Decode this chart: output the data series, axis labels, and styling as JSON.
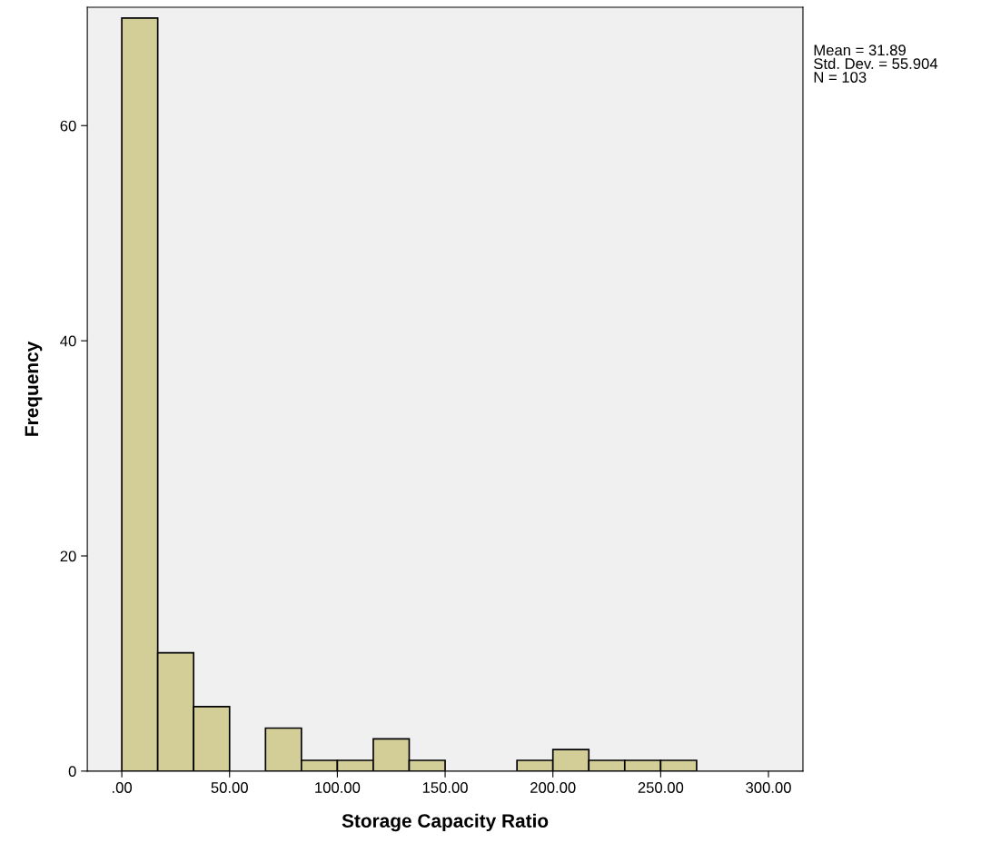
{
  "chart_data": {
    "type": "histogram",
    "xlabel": "Storage Capacity Ratio",
    "ylabel": "Frequency",
    "bins": [
      0,
      16.67,
      33.33,
      50,
      66.67,
      83.33,
      100,
      116.67,
      133.33,
      150,
      166.67,
      183.33,
      200,
      216.67,
      233.33,
      250,
      266.67
    ],
    "values": [
      70,
      11,
      6,
      0,
      4,
      1,
      1,
      3,
      1,
      0,
      0,
      1,
      2,
      1,
      1,
      1
    ],
    "color": "#d3ce97",
    "xlim": [
      -16,
      316
    ],
    "ylim": [
      0,
      71
    ],
    "xticks": [
      {
        "value": 0,
        "label": ".00"
      },
      {
        "value": 50,
        "label": "50.00"
      },
      {
        "value": 100,
        "label": "100.00"
      },
      {
        "value": 150,
        "label": "150.00"
      },
      {
        "value": 200,
        "label": "200.00"
      },
      {
        "value": 250,
        "label": "250.00"
      },
      {
        "value": 300,
        "label": "300.00"
      }
    ],
    "yticks": [
      0,
      20,
      40,
      60
    ],
    "grid": false,
    "legend": false,
    "annotations": [
      "Mean = 31.89\nStd. Dev. = 55.904\nN = 103"
    ]
  }
}
